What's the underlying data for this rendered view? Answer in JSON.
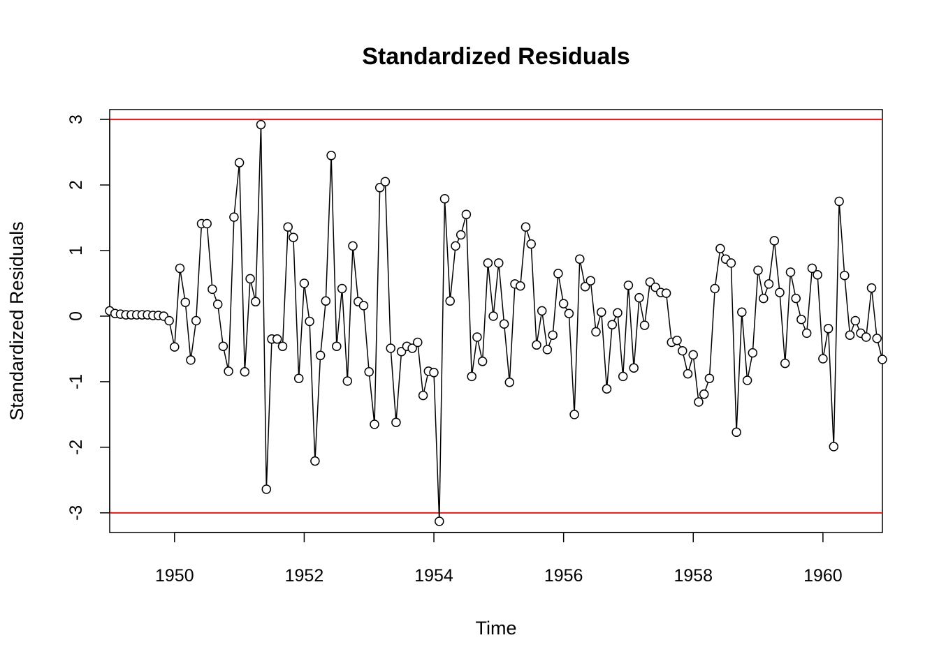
{
  "chart_data": {
    "type": "line",
    "title": "Standardized Residuals",
    "xlabel": "Time",
    "ylabel": "Standardized Residuals",
    "xlim": [
      1949.0,
      1960.917
    ],
    "ylim": [
      -3.3,
      3.15
    ],
    "xticks": [
      1950,
      1952,
      1954,
      1956,
      1958,
      1960
    ],
    "xtick_labels": [
      "1950",
      "1952",
      "1954",
      "1956",
      "1958",
      "1960"
    ],
    "yticks": [
      -3,
      -2,
      -1,
      0,
      1,
      2,
      3
    ],
    "ytick_labels": [
      "-3",
      "-2",
      "-1",
      "0",
      "1",
      "2",
      "3"
    ],
    "reference_lines": [
      3,
      -3
    ],
    "reference_line_color": "#e31a1c",
    "series_color": "#000000",
    "grid": false,
    "markers": "open-circle",
    "series": [
      {
        "x_start": 1949.0,
        "x_step": 0.08333,
        "values": [
          0.08,
          0.04,
          0.03,
          0.02,
          0.02,
          0.02,
          0.02,
          0.02,
          0.01,
          0.01,
          0.0,
          -0.07,
          -0.47,
          0.73,
          0.21,
          -0.67,
          -0.07,
          1.41,
          1.41,
          0.41,
          0.18,
          -0.46,
          -0.84,
          1.51,
          2.34,
          -0.85,
          0.57,
          0.22,
          2.92,
          -2.64,
          -0.35,
          -0.35,
          -0.46,
          1.36,
          1.2,
          -0.95,
          0.5,
          -0.08,
          -2.21,
          -0.6,
          0.23,
          2.45,
          -0.46,
          0.42,
          -0.99,
          1.07,
          0.22,
          0.16,
          -0.85,
          -1.65,
          1.96,
          2.05,
          -0.49,
          -1.62,
          -0.54,
          -0.46,
          -0.49,
          -0.4,
          -1.21,
          -0.84,
          -0.86,
          -3.13,
          1.79,
          0.23,
          1.07,
          1.24,
          1.55,
          -0.92,
          -0.32,
          -0.69,
          0.81,
          0.0,
          0.81,
          -0.12,
          -1.01,
          0.49,
          0.46,
          1.36,
          1.1,
          -0.44,
          0.08,
          -0.51,
          -0.29,
          0.65,
          0.19,
          0.04,
          -1.5,
          0.87,
          0.45,
          0.54,
          -0.24,
          0.06,
          -1.11,
          -0.13,
          0.05,
          -0.92,
          0.47,
          -0.79,
          0.28,
          -0.14,
          0.52,
          0.44,
          0.36,
          0.35,
          -0.4,
          -0.37,
          -0.53,
          -0.88,
          -0.59,
          -1.31,
          -1.19,
          -0.95,
          0.42,
          1.03,
          0.87,
          0.81,
          -1.77,
          0.06,
          -0.98,
          -0.56,
          0.7,
          0.27,
          0.49,
          1.15,
          0.36,
          -0.72,
          0.67,
          0.27,
          -0.05,
          -0.26,
          0.73,
          0.63,
          -0.65,
          -0.19,
          -1.99,
          1.75,
          0.62,
          -0.29,
          -0.07,
          -0.26,
          -0.32,
          0.43,
          -0.34,
          -0.66
        ]
      }
    ]
  }
}
